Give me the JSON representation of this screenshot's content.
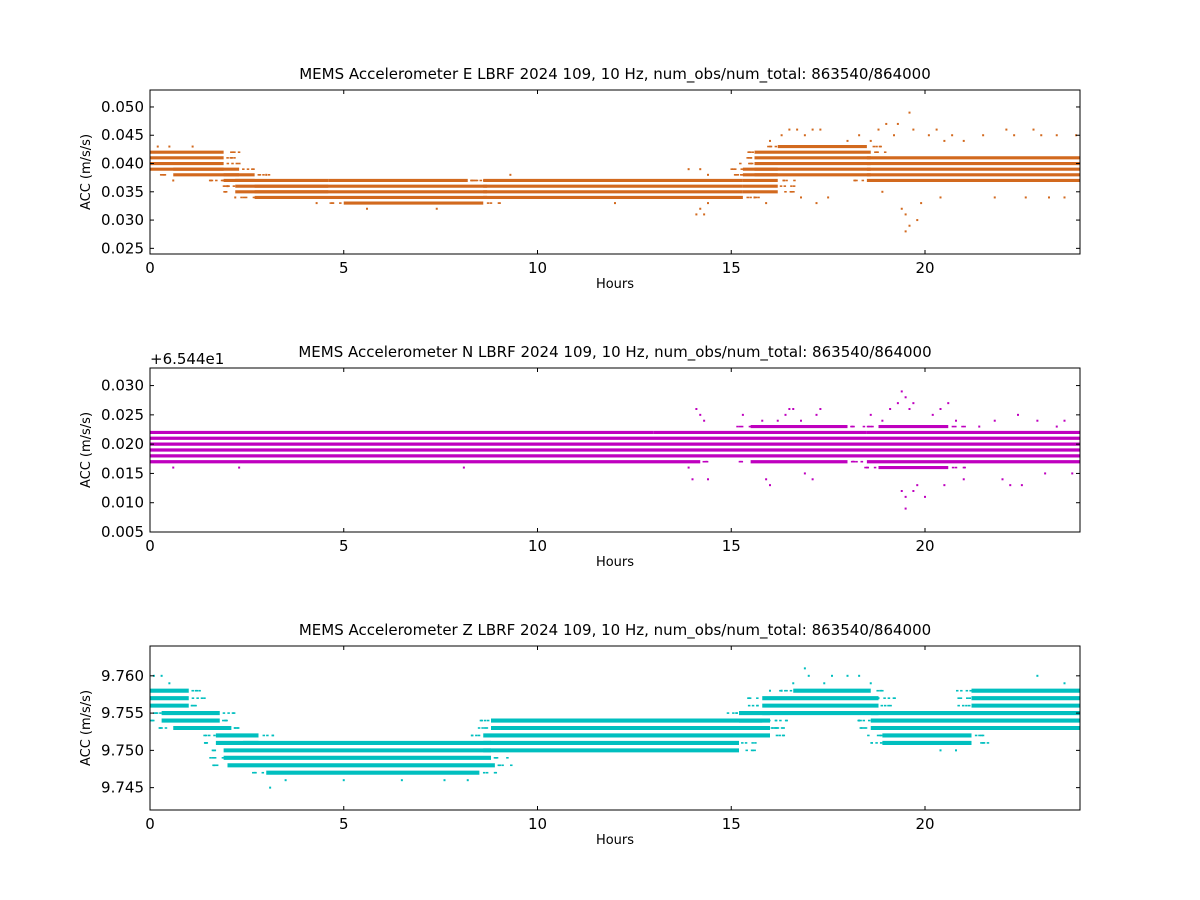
{
  "chart_data": [
    {
      "type": "scatter",
      "title": "MEMS Accelerometer E LBRF 2024 109, 10 Hz, num_obs/num_total: 863540/864000",
      "xlabel": "Hours",
      "ylabel": "ACC (m/s/s)",
      "xlim": [
        0,
        24
      ],
      "ylim": [
        0.024,
        0.053
      ],
      "x_ticks": [
        "0",
        "5",
        "10",
        "15",
        "20"
      ],
      "x_tick_values": [
        0,
        5,
        10,
        15,
        20
      ],
      "y_ticks": [
        "0.025",
        "0.030",
        "0.035",
        "0.040",
        "0.045",
        "0.050"
      ],
      "y_tick_values": [
        0.025,
        0.03,
        0.035,
        0.04,
        0.045,
        0.05
      ],
      "offset_text": "",
      "color": "#d2691e",
      "quantization": 0.001,
      "dense_bands": [
        {
          "x0": 0.0,
          "x1": 1.9,
          "levels": [
            0.039,
            0.04,
            0.041,
            0.042
          ]
        },
        {
          "x0": 0.6,
          "x1": 2.3,
          "levels": [
            0.038,
            0.039
          ]
        },
        {
          "x0": 1.9,
          "x1": 2.7,
          "levels": [
            0.037,
            0.038
          ]
        },
        {
          "x0": 2.2,
          "x1": 4.6,
          "levels": [
            0.035,
            0.036,
            0.037
          ]
        },
        {
          "x0": 2.7,
          "x1": 8.7,
          "levels": [
            0.034,
            0.035,
            0.036
          ]
        },
        {
          "x0": 4.6,
          "x1": 8.2,
          "levels": [
            0.037
          ]
        },
        {
          "x0": 5.0,
          "x1": 8.6,
          "levels": [
            0.033
          ]
        },
        {
          "x0": 8.6,
          "x1": 15.3,
          "levels": [
            0.034,
            0.035,
            0.036,
            0.037
          ]
        },
        {
          "x0": 15.3,
          "x1": 16.2,
          "levels": [
            0.035,
            0.036,
            0.037,
            0.038,
            0.039
          ]
        },
        {
          "x0": 15.6,
          "x1": 18.6,
          "levels": [
            0.038,
            0.039,
            0.04,
            0.041,
            0.042
          ]
        },
        {
          "x0": 16.2,
          "x1": 18.5,
          "levels": [
            0.043
          ]
        },
        {
          "x0": 18.5,
          "x1": 24.0,
          "levels": [
            0.037,
            0.038,
            0.039,
            0.04,
            0.041
          ]
        }
      ],
      "scatter_points": [
        [
          0.2,
          0.043
        ],
        [
          0.5,
          0.043
        ],
        [
          0.6,
          0.037
        ],
        [
          1.1,
          0.043
        ],
        [
          1.7,
          0.041
        ],
        [
          2.0,
          0.036
        ],
        [
          2.3,
          0.035
        ],
        [
          2.2,
          0.034
        ],
        [
          3.0,
          0.038
        ],
        [
          4.3,
          0.033
        ],
        [
          5.6,
          0.032
        ],
        [
          6.2,
          0.037
        ],
        [
          7.4,
          0.032
        ],
        [
          9.3,
          0.038
        ],
        [
          12.0,
          0.033
        ],
        [
          13.9,
          0.039
        ],
        [
          14.1,
          0.031
        ],
        [
          14.2,
          0.032
        ],
        [
          14.3,
          0.031
        ],
        [
          14.4,
          0.033
        ],
        [
          14.2,
          0.039
        ],
        [
          14.4,
          0.038
        ],
        [
          15.1,
          0.034
        ],
        [
          15.6,
          0.034
        ],
        [
          15.9,
          0.033
        ],
        [
          16.0,
          0.044
        ],
        [
          16.3,
          0.045
        ],
        [
          16.5,
          0.046
        ],
        [
          16.7,
          0.046
        ],
        [
          16.9,
          0.045
        ],
        [
          17.1,
          0.046
        ],
        [
          17.3,
          0.046
        ],
        [
          16.8,
          0.034
        ],
        [
          17.2,
          0.033
        ],
        [
          17.5,
          0.034
        ],
        [
          18.0,
          0.044
        ],
        [
          18.3,
          0.045
        ],
        [
          18.6,
          0.044
        ],
        [
          18.8,
          0.046
        ],
        [
          18.9,
          0.035
        ],
        [
          19.0,
          0.047
        ],
        [
          19.2,
          0.045
        ],
        [
          19.3,
          0.047
        ],
        [
          19.4,
          0.032
        ],
        [
          19.5,
          0.031
        ],
        [
          19.6,
          0.049
        ],
        [
          19.7,
          0.046
        ],
        [
          19.8,
          0.03
        ],
        [
          19.6,
          0.029
        ],
        [
          19.5,
          0.028
        ],
        [
          19.9,
          0.033
        ],
        [
          20.1,
          0.045
        ],
        [
          20.3,
          0.046
        ],
        [
          20.5,
          0.044
        ],
        [
          20.7,
          0.045
        ],
        [
          20.4,
          0.034
        ],
        [
          21.0,
          0.044
        ],
        [
          21.5,
          0.045
        ],
        [
          21.8,
          0.034
        ],
        [
          22.1,
          0.046
        ],
        [
          22.3,
          0.045
        ],
        [
          22.6,
          0.034
        ],
        [
          22.8,
          0.046
        ],
        [
          23.0,
          0.045
        ],
        [
          23.2,
          0.034
        ],
        [
          23.4,
          0.045
        ],
        [
          23.6,
          0.034
        ],
        [
          23.9,
          0.045
        ]
      ]
    },
    {
      "type": "scatter",
      "title": "MEMS Accelerometer N LBRF 2024 109, 10 Hz, num_obs/num_total: 863540/864000",
      "xlabel": "Hours",
      "ylabel": "ACC (m/s/s)",
      "xlim": [
        0,
        24
      ],
      "ylim": [
        0.005,
        0.033
      ],
      "x_ticks": [
        "0",
        "5",
        "10",
        "15",
        "20"
      ],
      "x_tick_values": [
        0,
        5,
        10,
        15,
        20
      ],
      "y_ticks": [
        "0.005",
        "0.010",
        "0.015",
        "0.020",
        "0.025",
        "0.030"
      ],
      "y_tick_values": [
        0.005,
        0.01,
        0.015,
        0.02,
        0.025,
        0.03
      ],
      "offset_text": "+6.544e1",
      "color": "#bf00bf",
      "quantization": 0.001,
      "dense_bands": [
        {
          "x0": 0.0,
          "x1": 24.0,
          "levels": [
            0.018,
            0.019,
            0.02,
            0.021
          ]
        },
        {
          "x0": 0.0,
          "x1": 14.2,
          "levels": [
            0.017
          ]
        },
        {
          "x0": 0.0,
          "x1": 13.0,
          "levels": [
            0.022
          ]
        },
        {
          "x0": 13.0,
          "x1": 18.5,
          "levels": [
            0.022
          ]
        },
        {
          "x0": 15.5,
          "x1": 18.0,
          "levels": [
            0.023,
            0.017
          ]
        },
        {
          "x0": 18.5,
          "x1": 24.0,
          "levels": [
            0.017,
            0.022
          ]
        },
        {
          "x0": 18.8,
          "x1": 20.6,
          "levels": [
            0.016,
            0.023
          ]
        }
      ],
      "scatter_points": [
        [
          0.4,
          0.022
        ],
        [
          0.6,
          0.016
        ],
        [
          2.3,
          0.016
        ],
        [
          5.6,
          0.022
        ],
        [
          7.5,
          0.022
        ],
        [
          8.1,
          0.016
        ],
        [
          14.1,
          0.026
        ],
        [
          14.2,
          0.025
        ],
        [
          14.0,
          0.014
        ],
        [
          14.4,
          0.014
        ],
        [
          14.3,
          0.024
        ],
        [
          13.9,
          0.016
        ],
        [
          15.3,
          0.025
        ],
        [
          15.8,
          0.024
        ],
        [
          15.9,
          0.014
        ],
        [
          16.0,
          0.013
        ],
        [
          16.2,
          0.024
        ],
        [
          16.4,
          0.025
        ],
        [
          16.5,
          0.026
        ],
        [
          16.6,
          0.026
        ],
        [
          16.8,
          0.024
        ],
        [
          16.9,
          0.015
        ],
        [
          17.1,
          0.014
        ],
        [
          17.3,
          0.026
        ],
        [
          17.2,
          0.025
        ],
        [
          18.6,
          0.025
        ],
        [
          18.9,
          0.024
        ],
        [
          19.1,
          0.026
        ],
        [
          19.3,
          0.027
        ],
        [
          19.4,
          0.029
        ],
        [
          19.5,
          0.028
        ],
        [
          19.6,
          0.026
        ],
        [
          19.7,
          0.027
        ],
        [
          19.4,
          0.012
        ],
        [
          19.5,
          0.011
        ],
        [
          19.5,
          0.009
        ],
        [
          19.7,
          0.012
        ],
        [
          19.8,
          0.013
        ],
        [
          20.0,
          0.011
        ],
        [
          20.2,
          0.025
        ],
        [
          20.4,
          0.026
        ],
        [
          20.5,
          0.013
        ],
        [
          20.6,
          0.027
        ],
        [
          20.8,
          0.024
        ],
        [
          21.0,
          0.014
        ],
        [
          21.4,
          0.023
        ],
        [
          21.8,
          0.024
        ],
        [
          22.0,
          0.014
        ],
        [
          22.2,
          0.013
        ],
        [
          22.4,
          0.025
        ],
        [
          22.5,
          0.013
        ],
        [
          22.9,
          0.024
        ],
        [
          23.1,
          0.015
        ],
        [
          23.4,
          0.023
        ],
        [
          23.6,
          0.024
        ],
        [
          23.8,
          0.015
        ]
      ]
    },
    {
      "type": "scatter",
      "title": "MEMS Accelerometer Z LBRF 2024 109, 10 Hz, num_obs/num_total: 863540/864000",
      "xlabel": "Hours",
      "ylabel": "ACC (m/s/s)",
      "xlim": [
        0,
        24
      ],
      "ylim": [
        9.742,
        9.764
      ],
      "x_ticks": [
        "0",
        "5",
        "10",
        "15",
        "20"
      ],
      "x_tick_values": [
        0,
        5,
        10,
        15,
        20
      ],
      "y_ticks": [
        "9.745",
        "9.750",
        "9.755",
        "9.760"
      ],
      "y_tick_values": [
        9.745,
        9.75,
        9.755,
        9.76
      ],
      "offset_text": "",
      "color": "#00bfbf",
      "quantization": 0.001,
      "dense_bands": [
        {
          "x0": 0.0,
          "x1": 1.0,
          "levels": [
            9.756,
            9.757,
            9.758
          ]
        },
        {
          "x0": 0.3,
          "x1": 1.8,
          "levels": [
            9.754,
            9.755
          ]
        },
        {
          "x0": 0.6,
          "x1": 2.1,
          "levels": [
            9.753
          ]
        },
        {
          "x0": 1.7,
          "x1": 2.8,
          "levels": [
            9.751,
            9.752
          ]
        },
        {
          "x0": 1.9,
          "x1": 8.8,
          "levels": [
            9.749,
            9.75
          ]
        },
        {
          "x0": 2.0,
          "x1": 8.9,
          "levels": [
            9.748
          ]
        },
        {
          "x0": 3.0,
          "x1": 8.5,
          "levels": [
            9.747
          ]
        },
        {
          "x0": 2.4,
          "x1": 8.8,
          "levels": [
            9.751
          ]
        },
        {
          "x0": 8.6,
          "x1": 15.2,
          "levels": [
            9.75,
            9.751,
            9.752
          ]
        },
        {
          "x0": 8.8,
          "x1": 15.8,
          "levels": [
            9.753,
            9.754
          ]
        },
        {
          "x0": 15.2,
          "x1": 16.0,
          "levels": [
            9.752,
            9.753,
            9.754,
            9.755
          ]
        },
        {
          "x0": 15.8,
          "x1": 18.8,
          "levels": [
            9.755,
            9.756,
            9.757
          ]
        },
        {
          "x0": 16.6,
          "x1": 18.6,
          "levels": [
            9.758
          ]
        },
        {
          "x0": 18.6,
          "x1": 24.0,
          "levels": [
            9.753,
            9.754,
            9.755
          ]
        },
        {
          "x0": 18.9,
          "x1": 21.2,
          "levels": [
            9.751,
            9.752
          ]
        },
        {
          "x0": 21.2,
          "x1": 24.0,
          "levels": [
            9.756,
            9.757,
            9.758
          ]
        }
      ],
      "scatter_points": [
        [
          0.1,
          9.76
        ],
        [
          0.3,
          9.76
        ],
        [
          0.5,
          9.759
        ],
        [
          3.1,
          9.745
        ],
        [
          3.5,
          9.746
        ],
        [
          5.0,
          9.746
        ],
        [
          6.5,
          9.746
        ],
        [
          7.6,
          9.746
        ],
        [
          8.2,
          9.746
        ],
        [
          9.5,
          9.754
        ],
        [
          9.8,
          9.754
        ],
        [
          11.5,
          9.754
        ],
        [
          12.0,
          9.754
        ],
        [
          14.5,
          9.754
        ],
        [
          15.1,
          9.754
        ],
        [
          16.0,
          9.758
        ],
        [
          16.3,
          9.758
        ],
        [
          16.6,
          9.759
        ],
        [
          16.9,
          9.761
        ],
        [
          17.0,
          9.76
        ],
        [
          17.4,
          9.759
        ],
        [
          17.6,
          9.76
        ],
        [
          18.0,
          9.76
        ],
        [
          18.3,
          9.76
        ],
        [
          18.6,
          9.759
        ],
        [
          18.3,
          9.754
        ],
        [
          18.8,
          9.757
        ],
        [
          20.4,
          9.75
        ],
        [
          20.8,
          9.75
        ],
        [
          22.9,
          9.76
        ],
        [
          23.6,
          9.759
        ]
      ]
    }
  ]
}
